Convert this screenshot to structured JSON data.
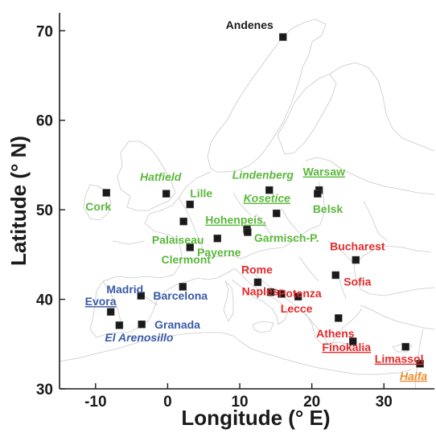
{
  "map": {
    "xlabel": "Longitude (° E)",
    "ylabel": "Latitude (° N)",
    "xlim": [
      -15,
      37
    ],
    "ylim": [
      30,
      72
    ],
    "x_ticks": [
      -10,
      0,
      10,
      20,
      30
    ],
    "y_ticks": [
      30,
      40,
      50,
      60,
      70
    ],
    "colors": {
      "green": "#5bb83c",
      "red": "#e32b2b",
      "blue": "#3a5ba8",
      "orange": "#ef8b2c",
      "black": "#1a1a1a",
      "coastline": "#c9c9c9"
    },
    "sites": [
      {
        "name": "Andenes",
        "lon": 16.0,
        "lat": 69.3,
        "color": "black",
        "style": "normal",
        "underline": false
      },
      {
        "name": "Warsaw",
        "lon": 21.0,
        "lat": 52.2,
        "color": "green",
        "style": "normal",
        "underline": true
      },
      {
        "name": "Lindenberg",
        "lon": 14.1,
        "lat": 52.2,
        "color": "green",
        "style": "italic",
        "underline": false
      },
      {
        "name": "Hatfield",
        "lon": -0.2,
        "lat": 51.8,
        "color": "green",
        "style": "italic",
        "underline": false
      },
      {
        "name": "Cork",
        "lon": -8.5,
        "lat": 51.9,
        "color": "green",
        "style": "normal",
        "underline": false
      },
      {
        "name": "Lille",
        "lon": 3.1,
        "lat": 50.6,
        "color": "green",
        "style": "normal",
        "underline": false
      },
      {
        "name": "Kosetice",
        "lon": 15.1,
        "lat": 49.6,
        "color": "green",
        "style": "italic",
        "underline": true
      },
      {
        "name": "Belsk",
        "lon": 20.8,
        "lat": 51.8,
        "color": "green",
        "style": "normal",
        "underline": false
      },
      {
        "name": "Palaiseau",
        "lon": 2.2,
        "lat": 48.7,
        "color": "green",
        "style": "normal",
        "underline": false
      },
      {
        "name": "Hohenpeis.",
        "lon": 11.0,
        "lat": 47.8,
        "color": "green",
        "style": "normal",
        "underline": true
      },
      {
        "name": "Garmisch-P.",
        "lon": 11.1,
        "lat": 47.5,
        "color": "green",
        "style": "normal",
        "underline": false
      },
      {
        "name": "Payerne",
        "lon": 6.9,
        "lat": 46.8,
        "color": "green",
        "style": "normal",
        "underline": false
      },
      {
        "name": "Clermont",
        "lon": 3.1,
        "lat": 45.8,
        "color": "green",
        "style": "normal",
        "underline": false
      },
      {
        "name": "Bucharest",
        "lon": 26.1,
        "lat": 44.4,
        "color": "red",
        "style": "normal",
        "underline": false
      },
      {
        "name": "Sofia",
        "lon": 23.3,
        "lat": 42.7,
        "color": "red",
        "style": "normal",
        "underline": false
      },
      {
        "name": "Rome",
        "lon": 12.5,
        "lat": 41.9,
        "color": "red",
        "style": "normal",
        "underline": false
      },
      {
        "name": "Potenza",
        "lon": 15.8,
        "lat": 40.6,
        "color": "red",
        "style": "normal",
        "underline": false
      },
      {
        "name": "Naples",
        "lon": 14.3,
        "lat": 40.8,
        "color": "red",
        "style": "normal",
        "underline": false
      },
      {
        "name": "Lecce",
        "lon": 18.1,
        "lat": 40.3,
        "color": "red",
        "style": "normal",
        "underline": false
      },
      {
        "name": "Athens",
        "lon": 23.7,
        "lat": 37.9,
        "color": "red",
        "style": "normal",
        "underline": false
      },
      {
        "name": "Finokalia",
        "lon": 25.7,
        "lat": 35.3,
        "color": "red",
        "style": "normal",
        "underline": true
      },
      {
        "name": "Limassol",
        "lon": 33.0,
        "lat": 34.7,
        "color": "red",
        "style": "normal",
        "underline": true
      },
      {
        "name": "Haifa",
        "lon": 35.0,
        "lat": 32.8,
        "color": "orange",
        "style": "italic",
        "underline": true
      },
      {
        "name": "Madrid",
        "lon": -3.7,
        "lat": 40.4,
        "color": "blue",
        "style": "normal",
        "underline": false
      },
      {
        "name": "Barcelona",
        "lon": 2.1,
        "lat": 41.4,
        "color": "blue",
        "style": "normal",
        "underline": false
      },
      {
        "name": "Evora",
        "lon": -7.9,
        "lat": 38.6,
        "color": "blue",
        "style": "normal",
        "underline": true
      },
      {
        "name": "Granada",
        "lon": -3.6,
        "lat": 37.2,
        "color": "blue",
        "style": "normal",
        "underline": false
      },
      {
        "name": "El Arenosillo",
        "lon": -6.7,
        "lat": 37.1,
        "color": "blue",
        "style": "italic",
        "underline": false
      }
    ]
  }
}
